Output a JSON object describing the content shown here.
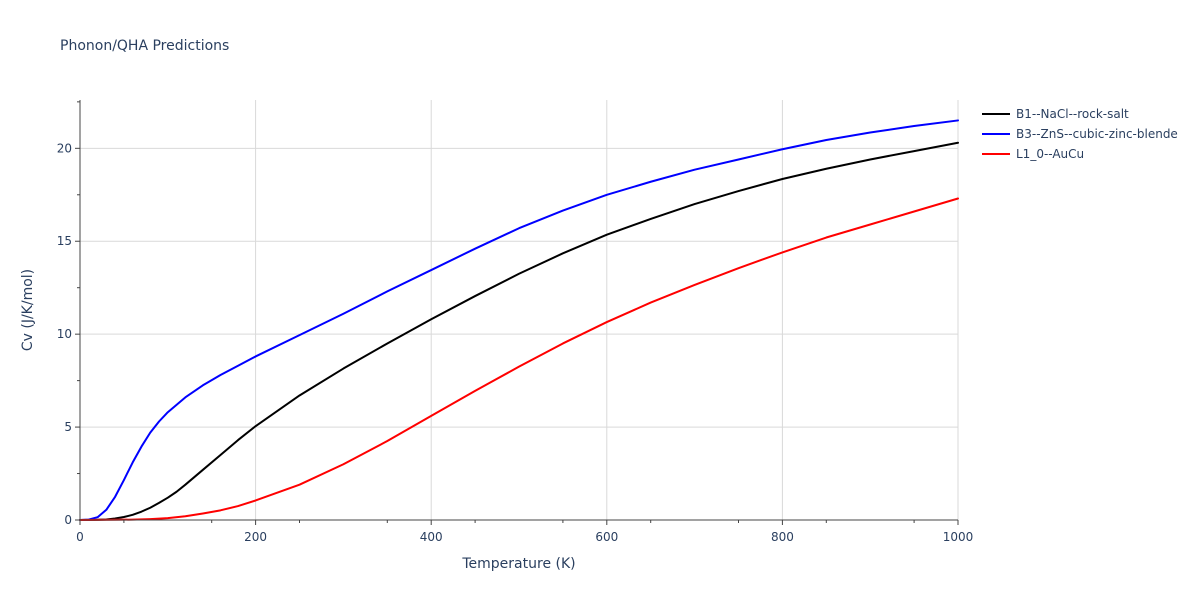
{
  "chart_data": {
    "type": "line",
    "title": "Phonon/QHA Predictions",
    "xlabel": "Temperature (K)",
    "ylabel": "Cv (J/K/mol)",
    "xlim": [
      0,
      1000
    ],
    "ylim": [
      0,
      22.6
    ],
    "x_ticks": [
      0,
      200,
      400,
      600,
      800,
      1000
    ],
    "y_ticks": [
      0,
      5,
      10,
      15,
      20
    ],
    "x_tick_labels": [
      "0",
      "200",
      "400",
      "600",
      "800",
      "1000"
    ],
    "y_tick_labels": [
      "0",
      "5",
      "10",
      "15",
      "20"
    ],
    "grid": true,
    "legend_position": "top-right-outside",
    "series": [
      {
        "name": "B1--NaCl--rock-salt",
        "color": "#000000",
        "points": [
          [
            0,
            0
          ],
          [
            20,
            0.01
          ],
          [
            30,
            0.03
          ],
          [
            40,
            0.08
          ],
          [
            50,
            0.16
          ],
          [
            60,
            0.28
          ],
          [
            70,
            0.45
          ],
          [
            80,
            0.66
          ],
          [
            90,
            0.92
          ],
          [
            100,
            1.2
          ],
          [
            110,
            1.52
          ],
          [
            120,
            1.9
          ],
          [
            140,
            2.7
          ],
          [
            160,
            3.5
          ],
          [
            180,
            4.3
          ],
          [
            200,
            5.05
          ],
          [
            250,
            6.7
          ],
          [
            300,
            8.15
          ],
          [
            350,
            9.5
          ],
          [
            400,
            10.8
          ],
          [
            450,
            12.05
          ],
          [
            500,
            13.25
          ],
          [
            550,
            14.35
          ],
          [
            600,
            15.35
          ],
          [
            650,
            16.2
          ],
          [
            700,
            17.0
          ],
          [
            750,
            17.7
          ],
          [
            800,
            18.35
          ],
          [
            850,
            18.9
          ],
          [
            900,
            19.4
          ],
          [
            950,
            19.85
          ],
          [
            1000,
            20.3
          ]
        ]
      },
      {
        "name": "B3--ZnS--cubic-zinc-blende",
        "color": "#0000ff",
        "points": [
          [
            0,
            0
          ],
          [
            10,
            0.02
          ],
          [
            20,
            0.15
          ],
          [
            30,
            0.55
          ],
          [
            40,
            1.25
          ],
          [
            50,
            2.15
          ],
          [
            60,
            3.1
          ],
          [
            70,
            3.95
          ],
          [
            80,
            4.7
          ],
          [
            90,
            5.3
          ],
          [
            100,
            5.8
          ],
          [
            120,
            6.6
          ],
          [
            140,
            7.25
          ],
          [
            160,
            7.8
          ],
          [
            180,
            8.3
          ],
          [
            200,
            8.8
          ],
          [
            250,
            9.95
          ],
          [
            300,
            11.1
          ],
          [
            350,
            12.3
          ],
          [
            400,
            13.45
          ],
          [
            450,
            14.6
          ],
          [
            500,
            15.7
          ],
          [
            550,
            16.65
          ],
          [
            600,
            17.5
          ],
          [
            650,
            18.2
          ],
          [
            700,
            18.85
          ],
          [
            750,
            19.4
          ],
          [
            800,
            19.95
          ],
          [
            850,
            20.45
          ],
          [
            900,
            20.85
          ],
          [
            950,
            21.2
          ],
          [
            1000,
            21.5
          ]
        ]
      },
      {
        "name": "L1_0--AuCu",
        "color": "#ff0000",
        "points": [
          [
            0,
            0
          ],
          [
            40,
            0.01
          ],
          [
            60,
            0.02
          ],
          [
            80,
            0.05
          ],
          [
            100,
            0.1
          ],
          [
            120,
            0.2
          ],
          [
            140,
            0.35
          ],
          [
            160,
            0.52
          ],
          [
            180,
            0.75
          ],
          [
            200,
            1.05
          ],
          [
            250,
            1.9
          ],
          [
            300,
            3.0
          ],
          [
            350,
            4.25
          ],
          [
            400,
            5.6
          ],
          [
            450,
            6.95
          ],
          [
            500,
            8.25
          ],
          [
            550,
            9.5
          ],
          [
            600,
            10.65
          ],
          [
            650,
            11.7
          ],
          [
            700,
            12.65
          ],
          [
            750,
            13.55
          ],
          [
            800,
            14.4
          ],
          [
            850,
            15.2
          ],
          [
            900,
            15.9
          ],
          [
            950,
            16.6
          ],
          [
            1000,
            17.3
          ]
        ]
      }
    ]
  }
}
